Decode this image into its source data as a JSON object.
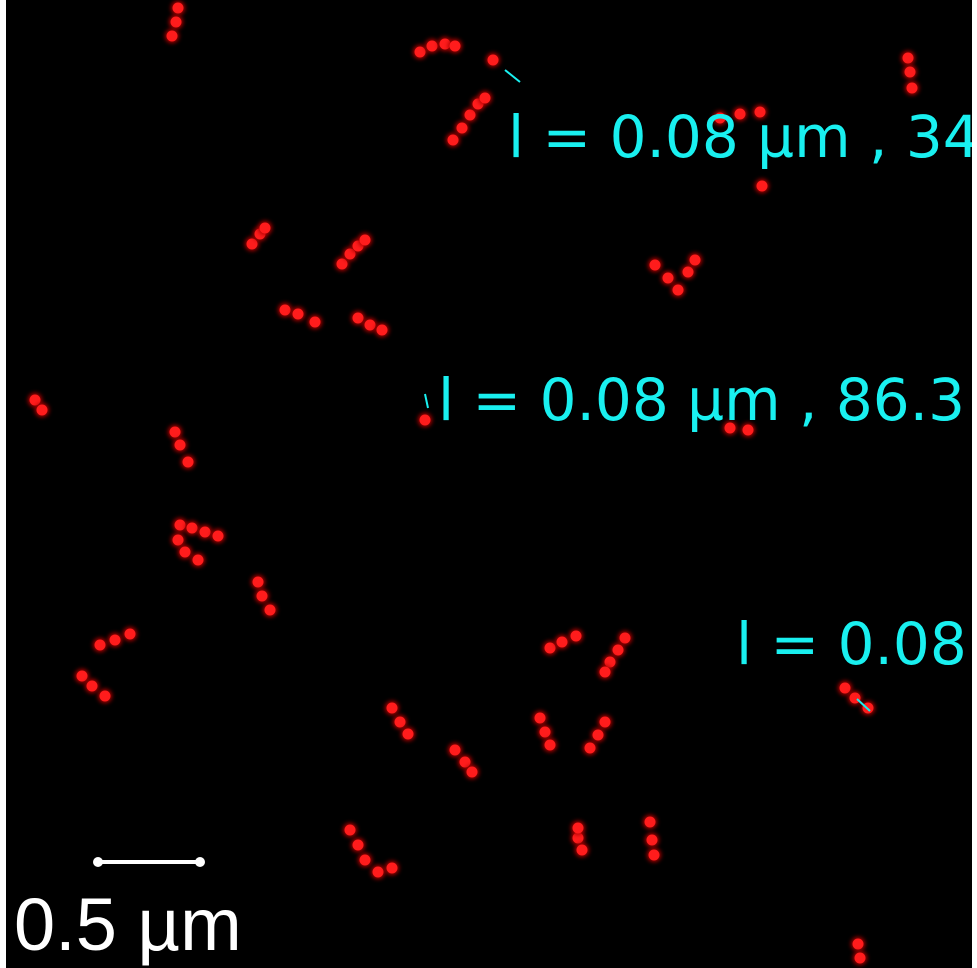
{
  "annotations": [
    {
      "label": "l = 0.08 µm ,  34"
    },
    {
      "label": "l = 0.08 µm ,  86.3"
    },
    {
      "label": "l = 0.08"
    }
  ],
  "scale_bar": {
    "label": "0.5 µm"
  }
}
